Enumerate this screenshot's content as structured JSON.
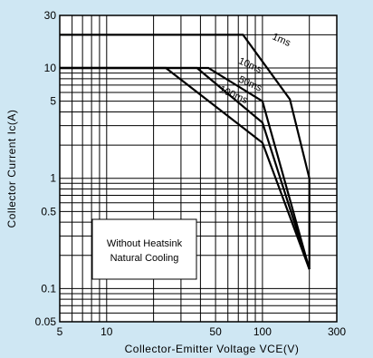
{
  "chart_data": {
    "type": "line",
    "title": "",
    "xlabel": "Collector-Emitter Voltage VCE(V)",
    "ylabel": "Collector Current Ic(A)",
    "x_scale": "log",
    "y_scale": "log",
    "xlim": [
      5,
      300
    ],
    "ylim": [
      0.05,
      30
    ],
    "x_ticks": [
      5,
      10,
      50,
      100,
      300
    ],
    "x_tick_labels": [
      "5",
      "10",
      "50",
      "100",
      "300"
    ],
    "y_ticks": [
      0.05,
      0.1,
      0.5,
      1,
      5,
      10,
      30
    ],
    "y_tick_labels": [
      "0.05",
      "0.1",
      "0.5",
      "1",
      "5",
      "10",
      "30"
    ],
    "grid": true,
    "annotation": {
      "line1": "Without Heatsink",
      "line2": "Natural Cooling"
    },
    "series": [
      {
        "name": "1ms",
        "x": [
          5,
          75,
          150,
          200,
          200
        ],
        "y": [
          20,
          20,
          5.2,
          1,
          0.15
        ]
      },
      {
        "name": "10ms",
        "x": [
          5,
          45,
          100,
          200
        ],
        "y": [
          10,
          10,
          5,
          0.15
        ]
      },
      {
        "name": "50ms",
        "x": [
          5,
          38,
          100,
          200
        ],
        "y": [
          10,
          10,
          3.2,
          0.15
        ]
      },
      {
        "name": "100ms",
        "x": [
          5,
          24,
          100,
          200
        ],
        "y": [
          10,
          10,
          2.1,
          0.15
        ]
      }
    ],
    "label_positions": [
      {
        "series": "1ms",
        "x": 130,
        "y": 17
      },
      {
        "series": "10ms",
        "x": 82,
        "y": 10
      },
      {
        "series": "50ms",
        "x": 82,
        "y": 6.8
      },
      {
        "series": "100ms",
        "x": 64,
        "y": 5.4
      }
    ],
    "colors": {
      "background": "#cfe7f3",
      "plot": "#ffffff",
      "line": "#000000"
    }
  }
}
